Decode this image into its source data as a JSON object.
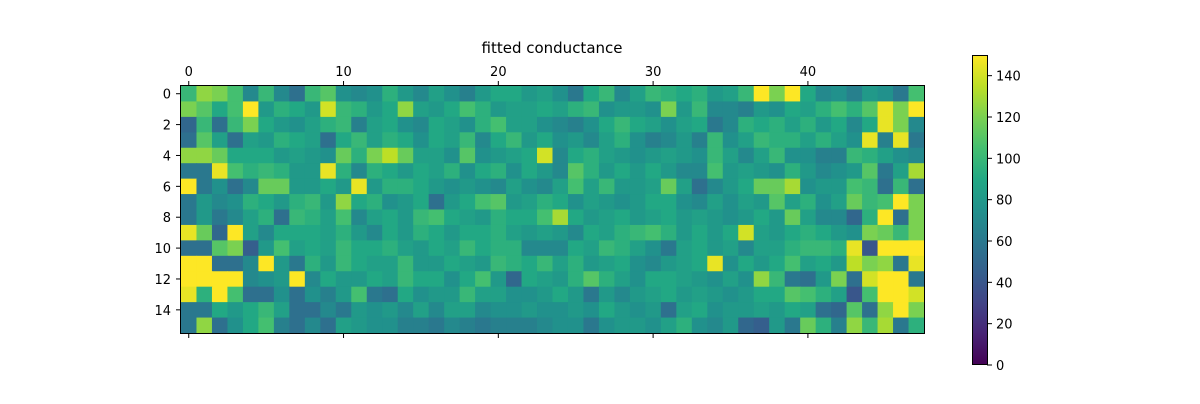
{
  "chart_data": {
    "type": "heatmap",
    "title": "fitted conductance",
    "xlabel": "",
    "ylabel": "",
    "rows": 16,
    "cols": 48,
    "x_ticks": [
      0,
      10,
      20,
      30,
      40
    ],
    "x_tick_labels": [
      "0",
      "10",
      "20",
      "30",
      "40"
    ],
    "y_ticks": [
      0,
      2,
      4,
      6,
      8,
      10,
      12,
      14
    ],
    "y_tick_labels": [
      "0",
      "2",
      "4",
      "6",
      "8",
      "10",
      "12",
      "14"
    ],
    "x_axis_position": "top",
    "grid": false,
    "colormap": "viridis",
    "colorbar": {
      "vmin": 0,
      "vmax": 150,
      "ticks": [
        0,
        20,
        40,
        60,
        80,
        100,
        120,
        140
      ],
      "tick_labels": [
        "0",
        "20",
        "40",
        "60",
        "80",
        "100",
        "120",
        "140"
      ],
      "position": "right"
    },
    "values": [
      [
        100,
        125,
        120,
        105,
        70,
        100,
        70,
        55,
        100,
        110,
        75,
        70,
        75,
        95,
        80,
        70,
        85,
        75,
        65,
        80,
        90,
        90,
        80,
        85,
        75,
        60,
        90,
        100,
        70,
        85,
        100,
        95,
        90,
        95,
        80,
        85,
        100,
        150,
        120,
        150,
        90,
        70,
        75,
        65,
        80,
        75,
        60,
        105
      ],
      [
        120,
        110,
        90,
        105,
        150,
        80,
        95,
        90,
        80,
        140,
        100,
        95,
        80,
        90,
        125,
        85,
        80,
        90,
        105,
        95,
        80,
        85,
        85,
        90,
        85,
        95,
        100,
        75,
        80,
        80,
        75,
        120,
        80,
        100,
        70,
        70,
        65,
        80,
        75,
        90,
        85,
        95,
        105,
        95,
        110,
        145,
        120,
        150
      ],
      [
        50,
        100,
        55,
        100,
        120,
        90,
        80,
        75,
        85,
        95,
        100,
        65,
        85,
        90,
        75,
        70,
        90,
        85,
        75,
        95,
        105,
        85,
        85,
        75,
        70,
        65,
        75,
        90,
        100,
        90,
        85,
        75,
        85,
        90,
        60,
        70,
        95,
        90,
        95,
        85,
        95,
        80,
        90,
        70,
        90,
        145,
        120,
        70
      ],
      [
        55,
        110,
        85,
        55,
        85,
        80,
        95,
        90,
        85,
        55,
        90,
        100,
        85,
        95,
        90,
        75,
        90,
        85,
        100,
        70,
        90,
        100,
        80,
        90,
        75,
        80,
        70,
        85,
        95,
        75,
        65,
        70,
        80,
        65,
        100,
        75,
        85,
        100,
        95,
        95,
        85,
        95,
        85,
        75,
        145,
        65,
        145,
        60
      ],
      [
        125,
        125,
        115,
        90,
        90,
        90,
        80,
        85,
        80,
        75,
        115,
        95,
        120,
        135,
        115,
        85,
        85,
        75,
        110,
        75,
        80,
        85,
        90,
        140,
        70,
        90,
        95,
        85,
        80,
        75,
        80,
        85,
        80,
        75,
        100,
        85,
        70,
        85,
        100,
        75,
        75,
        65,
        65,
        100,
        95,
        85,
        75,
        70
      ],
      [
        60,
        60,
        145,
        105,
        95,
        100,
        95,
        80,
        80,
        145,
        95,
        70,
        95,
        90,
        80,
        90,
        85,
        95,
        75,
        90,
        95,
        75,
        90,
        80,
        70,
        110,
        95,
        80,
        90,
        80,
        90,
        80,
        70,
        70,
        105,
        80,
        85,
        80,
        75,
        95,
        80,
        70,
        75,
        80,
        110,
        60,
        85,
        130
      ],
      [
        150,
        60,
        75,
        55,
        70,
        115,
        115,
        80,
        80,
        90,
        80,
        145,
        80,
        95,
        95,
        90,
        80,
        75,
        80,
        75,
        70,
        85,
        75,
        70,
        85,
        105,
        85,
        100,
        80,
        80,
        85,
        115,
        85,
        55,
        70,
        80,
        90,
        115,
        115,
        130,
        75,
        80,
        80,
        105,
        100,
        55,
        100,
        55
      ],
      [
        60,
        80,
        70,
        75,
        95,
        90,
        80,
        95,
        100,
        80,
        125,
        90,
        95,
        75,
        80,
        90,
        55,
        80,
        90,
        105,
        110,
        80,
        85,
        95,
        90,
        75,
        85,
        80,
        75,
        80,
        90,
        90,
        75,
        70,
        85,
        75,
        85,
        80,
        110,
        85,
        95,
        75,
        85,
        115,
        100,
        105,
        150,
        120
      ],
      [
        60,
        80,
        60,
        70,
        85,
        95,
        55,
        100,
        95,
        85,
        105,
        70,
        85,
        90,
        80,
        100,
        105,
        90,
        85,
        80,
        95,
        90,
        90,
        105,
        130,
        90,
        80,
        85,
        90,
        80,
        85,
        90,
        80,
        85,
        80,
        75,
        80,
        90,
        80,
        115,
        85,
        70,
        70,
        50,
        95,
        150,
        55,
        120
      ],
      [
        145,
        115,
        50,
        150,
        85,
        70,
        90,
        90,
        90,
        85,
        95,
        80,
        70,
        90,
        80,
        95,
        90,
        80,
        90,
        90,
        95,
        85,
        80,
        85,
        80,
        70,
        90,
        85,
        95,
        100,
        105,
        95,
        80,
        90,
        80,
        90,
        140,
        85,
        80,
        90,
        95,
        90,
        80,
        75,
        120,
        115,
        100,
        120
      ],
      [
        55,
        55,
        110,
        120,
        45,
        80,
        105,
        85,
        90,
        85,
        100,
        90,
        90,
        95,
        85,
        80,
        90,
        85,
        100,
        90,
        95,
        95,
        70,
        70,
        70,
        90,
        85,
        100,
        95,
        85,
        75,
        60,
        85,
        90,
        80,
        85,
        70,
        85,
        85,
        95,
        100,
        100,
        95,
        145,
        40,
        150,
        150,
        150
      ],
      [
        150,
        150,
        55,
        55,
        70,
        150,
        80,
        60,
        95,
        80,
        100,
        90,
        85,
        85,
        100,
        80,
        80,
        90,
        85,
        80,
        100,
        95,
        90,
        100,
        85,
        95,
        80,
        85,
        90,
        75,
        70,
        80,
        85,
        90,
        145,
        75,
        90,
        80,
        90,
        105,
        85,
        90,
        80,
        135,
        120,
        125,
        60,
        145
      ],
      [
        150,
        150,
        150,
        150,
        70,
        75,
        80,
        150,
        70,
        90,
        80,
        80,
        90,
        85,
        100,
        90,
        90,
        75,
        90,
        105,
        80,
        50,
        90,
        85,
        80,
        95,
        110,
        95,
        85,
        75,
        90,
        90,
        85,
        80,
        75,
        85,
        75,
        125,
        100,
        60,
        55,
        80,
        120,
        55,
        140,
        150,
        150,
        60
      ],
      [
        145,
        95,
        150,
        105,
        55,
        55,
        75,
        55,
        75,
        65,
        80,
        105,
        60,
        55,
        90,
        75,
        80,
        80,
        100,
        85,
        85,
        75,
        75,
        80,
        90,
        80,
        60,
        80,
        70,
        80,
        85,
        90,
        80,
        85,
        80,
        75,
        80,
        90,
        90,
        110,
        105,
        95,
        85,
        40,
        105,
        150,
        150,
        140
      ],
      [
        60,
        60,
        90,
        80,
        90,
        100,
        85,
        55,
        55,
        70,
        60,
        80,
        75,
        80,
        70,
        85,
        70,
        85,
        85,
        70,
        75,
        75,
        80,
        75,
        75,
        80,
        75,
        90,
        80,
        75,
        80,
        55,
        85,
        90,
        75,
        80,
        80,
        85,
        80,
        90,
        85,
        55,
        50,
        110,
        55,
        125,
        150,
        120
      ],
      [
        60,
        125,
        55,
        75,
        90,
        105,
        65,
        55,
        70,
        55,
        85,
        80,
        75,
        75,
        65,
        65,
        60,
        70,
        65,
        60,
        65,
        65,
        65,
        70,
        75,
        75,
        60,
        75,
        80,
        80,
        75,
        85,
        95,
        75,
        70,
        80,
        50,
        45,
        80,
        60,
        115,
        95,
        65,
        125,
        100,
        130,
        60,
        95
      ]
    ]
  }
}
